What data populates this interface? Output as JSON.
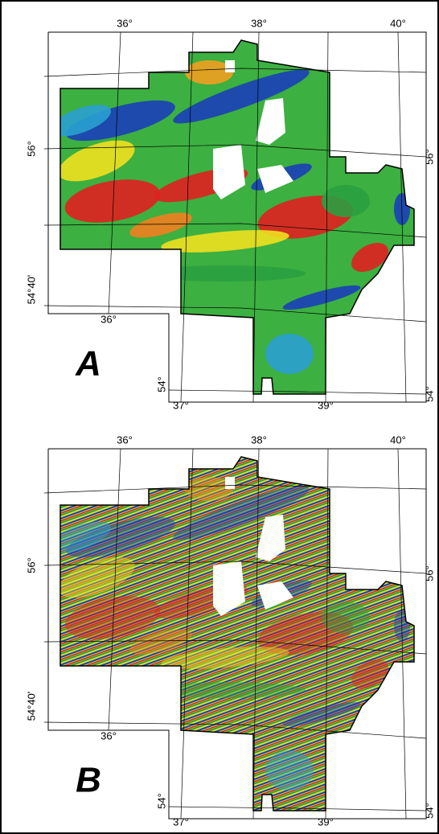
{
  "panels": [
    {
      "letter": "A",
      "top_labels": [
        "36°",
        "38°",
        "40°"
      ],
      "left_labels": [
        "56°",
        "54°40'"
      ],
      "right_labels": [
        "56°",
        "54°"
      ],
      "bottom_labels": [
        "36°",
        "37°",
        "39°"
      ],
      "stem_label": "54°"
    },
    {
      "letter": "B",
      "top_labels": [
        "36°",
        "38°",
        "40°"
      ],
      "left_labels": [
        "56°",
        "54°40'"
      ],
      "right_labels": [
        "56°",
        "54°"
      ],
      "bottom_labels": [
        "36°",
        "37°",
        "39°"
      ],
      "stem_label": "54°"
    }
  ]
}
